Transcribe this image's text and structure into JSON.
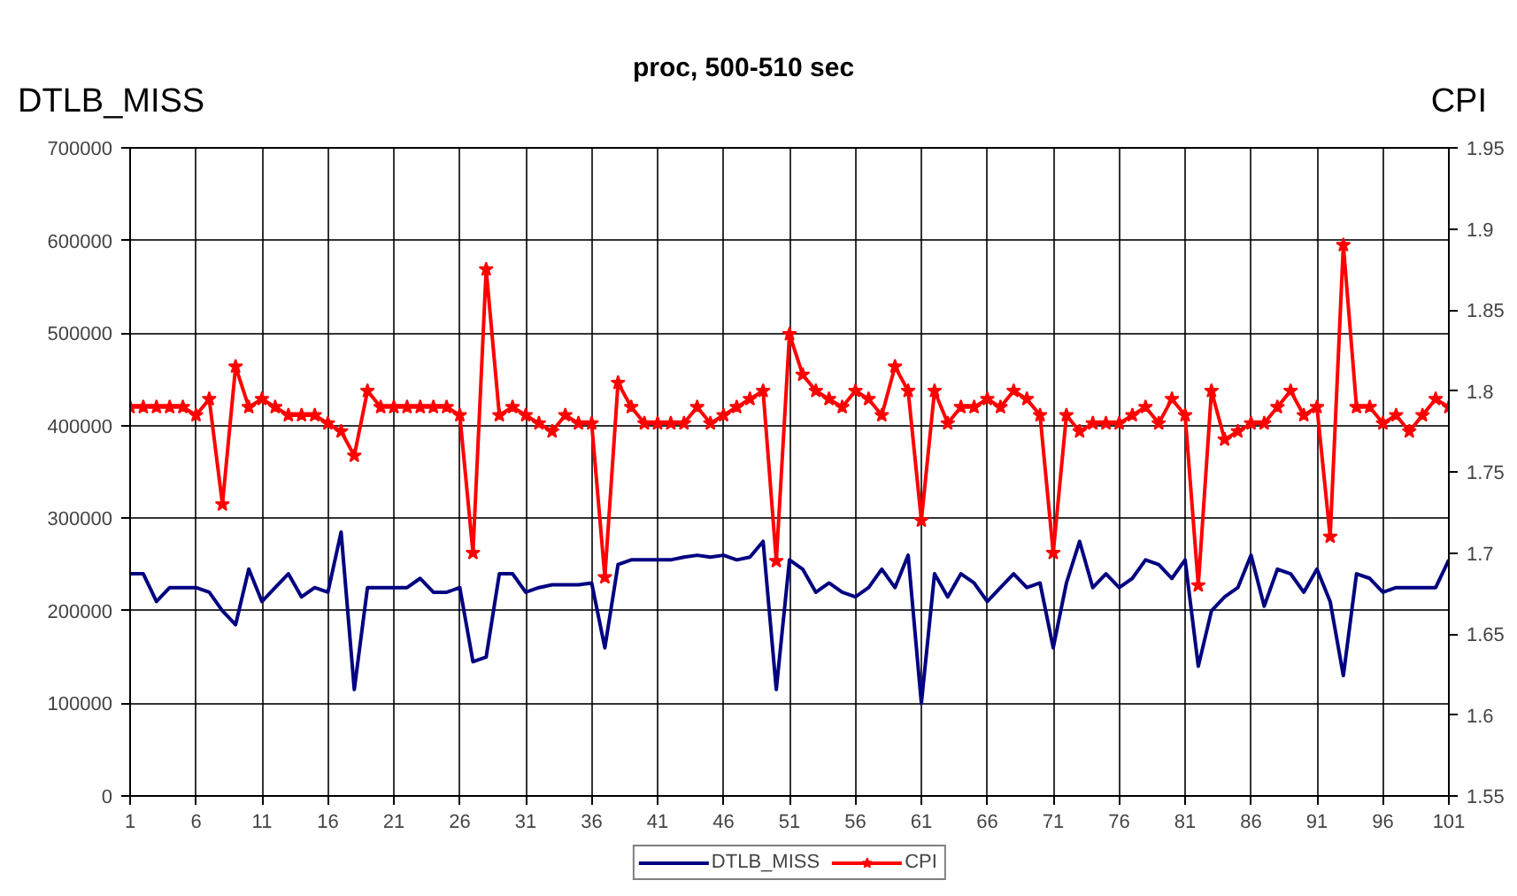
{
  "chart_data": {
    "type": "line",
    "title": "proc, 500-510 sec",
    "ylabel": "DTLB_MISS",
    "y2label": "CPI",
    "x": [
      1,
      2,
      3,
      4,
      5,
      6,
      7,
      8,
      9,
      10,
      11,
      12,
      13,
      14,
      15,
      16,
      17,
      18,
      19,
      20,
      21,
      22,
      23,
      24,
      25,
      26,
      27,
      28,
      29,
      30,
      31,
      32,
      33,
      34,
      35,
      36,
      37,
      38,
      39,
      40,
      41,
      42,
      43,
      44,
      45,
      46,
      47,
      48,
      49,
      50,
      51,
      52,
      53,
      54,
      55,
      56,
      57,
      58,
      59,
      60,
      61,
      62,
      63,
      64,
      65,
      66,
      67,
      68,
      69,
      70,
      71,
      72,
      73,
      74,
      75,
      76,
      77,
      78,
      79,
      80,
      81,
      82,
      83,
      84,
      85,
      86,
      87,
      88,
      89,
      90,
      91,
      92,
      93,
      94,
      95,
      96,
      97,
      98,
      99,
      100,
      101
    ],
    "series": [
      {
        "name": "DTLB_MISS",
        "color": "#000080",
        "marker": "none",
        "values": [
          240000,
          240000,
          210000,
          225000,
          225000,
          225000,
          220000,
          200000,
          185000,
          245000,
          210000,
          225000,
          240000,
          215000,
          225000,
          220000,
          285000,
          115000,
          225000,
          225000,
          225000,
          225000,
          235000,
          220000,
          220000,
          225000,
          145000,
          150000,
          240000,
          240000,
          220000,
          225000,
          228000,
          228000,
          228000,
          230000,
          160000,
          250000,
          255000,
          255000,
          255000,
          255000,
          258000,
          260000,
          258000,
          260000,
          255000,
          258000,
          275000,
          115000,
          255000,
          245000,
          220000,
          230000,
          220000,
          215000,
          225000,
          245000,
          225000,
          260000,
          100000,
          240000,
          215000,
          240000,
          230000,
          210000,
          225000,
          240000,
          225000,
          230000,
          160000,
          230000,
          275000,
          225000,
          240000,
          225000,
          235000,
          255000,
          250000,
          235000,
          255000,
          140000,
          200000,
          215000,
          225000,
          260000,
          205000,
          245000,
          240000,
          220000,
          245000,
          210000,
          130000,
          240000,
          235000,
          220000,
          225000,
          225000,
          225000,
          225000,
          255000
        ]
      },
      {
        "name": "CPI",
        "color": "#ff0000",
        "marker": "star",
        "axis": "y2",
        "values": [
          1.79,
          1.79,
          1.79,
          1.79,
          1.79,
          1.785,
          1.795,
          1.73,
          1.815,
          1.79,
          1.795,
          1.79,
          1.785,
          1.785,
          1.785,
          1.78,
          1.775,
          1.76,
          1.8,
          1.79,
          1.79,
          1.79,
          1.79,
          1.79,
          1.79,
          1.785,
          1.7,
          1.875,
          1.785,
          1.79,
          1.785,
          1.78,
          1.775,
          1.785,
          1.78,
          1.78,
          1.685,
          1.805,
          1.79,
          1.78,
          1.78,
          1.78,
          1.78,
          1.79,
          1.78,
          1.785,
          1.79,
          1.795,
          1.8,
          1.695,
          1.835,
          1.81,
          1.8,
          1.795,
          1.79,
          1.8,
          1.795,
          1.785,
          1.815,
          1.8,
          1.72,
          1.8,
          1.78,
          1.79,
          1.79,
          1.795,
          1.79,
          1.8,
          1.795,
          1.785,
          1.7,
          1.785,
          1.775,
          1.78,
          1.78,
          1.78,
          1.785,
          1.79,
          1.78,
          1.795,
          1.785,
          1.68,
          1.8,
          1.77,
          1.775,
          1.78,
          1.78,
          1.79,
          1.8,
          1.785,
          1.79,
          1.71,
          1.89,
          1.79,
          1.79,
          1.78,
          1.785,
          1.775,
          1.785,
          1.795,
          1.79
        ]
      }
    ],
    "xlim": [
      1,
      101
    ],
    "xticks": [
      1,
      6,
      11,
      16,
      21,
      26,
      31,
      36,
      41,
      46,
      51,
      56,
      61,
      66,
      71,
      76,
      81,
      86,
      91,
      96,
      101
    ],
    "ylim": [
      0,
      700000
    ],
    "yticks": [
      0,
      100000,
      200000,
      300000,
      400000,
      500000,
      600000,
      700000
    ],
    "y2lim": [
      1.55,
      1.95
    ],
    "y2ticks": [
      1.55,
      1.6,
      1.65,
      1.7,
      1.75,
      1.8,
      1.85,
      1.9,
      1.95
    ],
    "grid": true,
    "legend": "bottom",
    "line_style": "solid"
  }
}
